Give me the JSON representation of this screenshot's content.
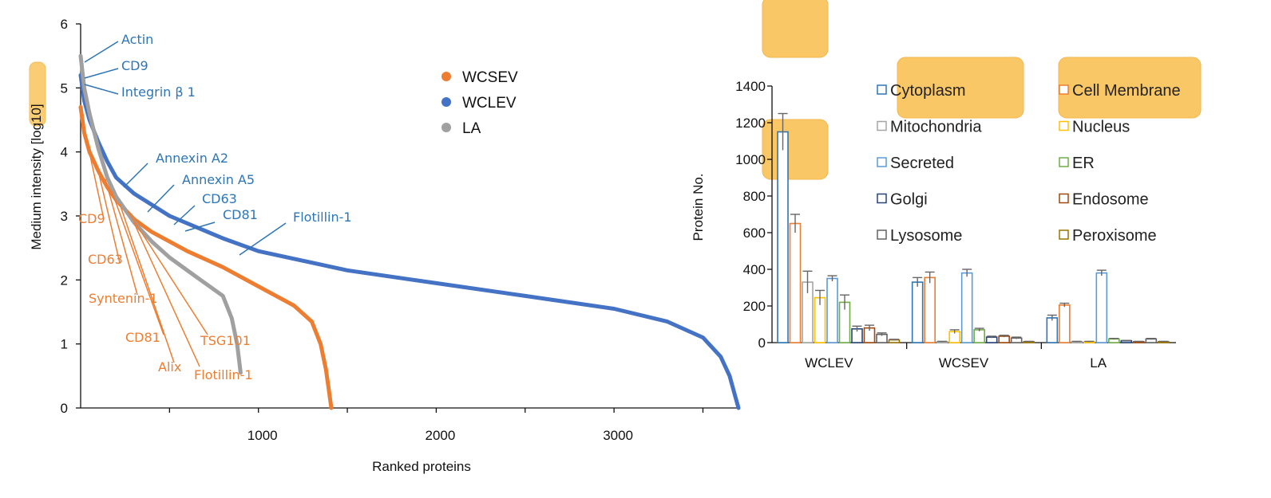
{
  "chart_data": [
    {
      "type": "line",
      "xlabel": "Ranked proteins",
      "ylabel": "Medium intensity [log10]",
      "xlim": [
        0,
        3700
      ],
      "ylim": [
        0,
        6
      ],
      "xticks": [
        "1000",
        "2000",
        "3000"
      ],
      "yticks": [
        "0",
        "1",
        "2",
        "3",
        "4",
        "5",
        "6"
      ],
      "legend_position": "top-center",
      "series": [
        {
          "name": "WCSEV",
          "color": "#ED7D31",
          "x": [
            0,
            20,
            50,
            100,
            150,
            200,
            300,
            400,
            600,
            800,
            1000,
            1200,
            1300,
            1350,
            1380,
            1400,
            1410
          ],
          "y": [
            4.7,
            4.3,
            4.0,
            3.7,
            3.45,
            3.25,
            2.95,
            2.75,
            2.45,
            2.2,
            1.9,
            1.6,
            1.35,
            1.0,
            0.6,
            0.2,
            0.0
          ]
        },
        {
          "name": "WCLEV",
          "color": "#4472C4",
          "x": [
            0,
            20,
            50,
            100,
            150,
            200,
            300,
            500,
            800,
            1000,
            1500,
            2000,
            2500,
            3000,
            3300,
            3500,
            3600,
            3650,
            3680,
            3700
          ],
          "y": [
            5.2,
            4.8,
            4.5,
            4.15,
            3.85,
            3.6,
            3.35,
            3.0,
            2.65,
            2.45,
            2.15,
            1.95,
            1.75,
            1.55,
            1.35,
            1.1,
            0.8,
            0.5,
            0.2,
            0.0
          ]
        },
        {
          "name": "LA",
          "color": "#A0A0A0",
          "x": [
            0,
            20,
            50,
            100,
            150,
            200,
            300,
            400,
            500,
            600,
            700,
            800,
            850,
            880,
            900
          ],
          "y": [
            5.5,
            5.0,
            4.6,
            4.05,
            3.6,
            3.3,
            2.9,
            2.6,
            2.35,
            2.15,
            1.95,
            1.75,
            1.4,
            1.0,
            0.55
          ]
        }
      ],
      "annotations": [
        {
          "text": "Actin",
          "series": "WCLEV"
        },
        {
          "text": "CD9",
          "series": "WCLEV"
        },
        {
          "text": "Integrin β 1",
          "series": "WCLEV"
        },
        {
          "text": "Annexin A2",
          "series": "WCLEV"
        },
        {
          "text": "Annexin A5",
          "series": "WCLEV"
        },
        {
          "text": "CD63",
          "series": "WCLEV"
        },
        {
          "text": "CD81",
          "series": "WCLEV"
        },
        {
          "text": "Flotillin-1",
          "series": "WCLEV"
        },
        {
          "text": "CD9",
          "series": "WCSEV"
        },
        {
          "text": "CD63",
          "series": "WCSEV"
        },
        {
          "text": "Syntenin-1",
          "series": "WCSEV"
        },
        {
          "text": "CD81",
          "series": "WCSEV"
        },
        {
          "text": "Alix",
          "series": "WCSEV"
        },
        {
          "text": "TSG101",
          "series": "WCSEV"
        },
        {
          "text": "Flotillin-1",
          "series": "WCSEV"
        }
      ]
    },
    {
      "type": "bar",
      "xlabel": "",
      "ylabel": "Protein No.",
      "ylim": [
        0,
        1400
      ],
      "yticks": [
        "0",
        "200",
        "400",
        "600",
        "800",
        "1000",
        "1200",
        "1400"
      ],
      "categories": [
        "WCLEV",
        "WCSEV",
        "LA"
      ],
      "legend_position": "top-right",
      "series": [
        {
          "name": "Cytoplasm",
          "color": "#2E75B6",
          "values": [
            1150,
            330,
            135
          ],
          "errors": [
            100,
            25,
            15
          ]
        },
        {
          "name": "Cell Membrane",
          "color": "#ED7D31",
          "values": [
            650,
            355,
            205
          ],
          "errors": [
            50,
            30,
            10
          ]
        },
        {
          "name": "Mitochondria",
          "color": "#A5A5A5",
          "values": [
            330,
            5,
            5
          ],
          "errors": [
            60,
            2,
            2
          ]
        },
        {
          "name": "Nucleus",
          "color": "#FFC000",
          "values": [
            245,
            60,
            5
          ],
          "errors": [
            40,
            10,
            2
          ]
        },
        {
          "name": "Secreted",
          "color": "#5B9BD5",
          "values": [
            350,
            380,
            380
          ],
          "errors": [
            15,
            20,
            15
          ]
        },
        {
          "name": "ER",
          "color": "#70AD47",
          "values": [
            220,
            70,
            20
          ],
          "errors": [
            40,
            8,
            3
          ]
        },
        {
          "name": "Golgi",
          "color": "#264478",
          "values": [
            75,
            30,
            10
          ],
          "errors": [
            15,
            5,
            2
          ]
        },
        {
          "name": "Endosome",
          "color": "#9E480E",
          "values": [
            80,
            35,
            5
          ],
          "errors": [
            15,
            5,
            2
          ]
        },
        {
          "name": "Lysosome",
          "color": "#636363",
          "values": [
            45,
            25,
            20
          ],
          "errors": [
            8,
            5,
            3
          ]
        },
        {
          "name": "Peroxisome",
          "color": "#997300",
          "values": [
            15,
            5,
            5
          ],
          "errors": [
            3,
            2,
            2
          ]
        }
      ]
    }
  ],
  "highlight_color": "#FAC766"
}
